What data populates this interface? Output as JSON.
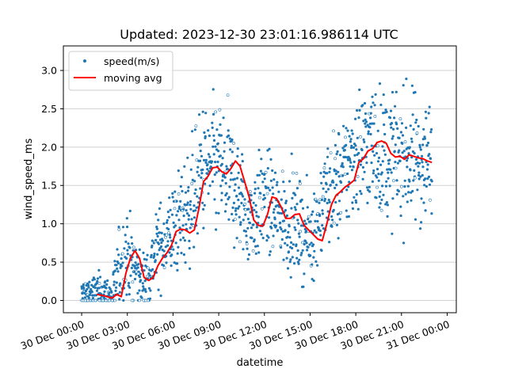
{
  "chart_data": {
    "type": "scatter",
    "title": "Updated: 2023-12-30 23:01:16.986114 UTC",
    "xlabel": "datetime",
    "ylabel": "wind_speed_ms",
    "x_unit": "hours since 30 Dec 00:00",
    "xlim_hours": [
      -1.2,
      24.6
    ],
    "ylim": [
      -0.16,
      3.32
    ],
    "x_ticks": [
      {
        "hour": 0,
        "label": "30 Dec 00:00"
      },
      {
        "hour": 3,
        "label": "30 Dec 03:00"
      },
      {
        "hour": 6,
        "label": "30 Dec 06:00"
      },
      {
        "hour": 9,
        "label": "30 Dec 09:00"
      },
      {
        "hour": 12,
        "label": "30 Dec 12:00"
      },
      {
        "hour": 15,
        "label": "30 Dec 15:00"
      },
      {
        "hour": 18,
        "label": "30 Dec 18:00"
      },
      {
        "hour": 21,
        "label": "30 Dec 21:00"
      },
      {
        "hour": 24,
        "label": "31 Dec 00:00"
      }
    ],
    "y_ticks": [
      0.0,
      0.5,
      1.0,
      1.5,
      2.0,
      2.5,
      3.0
    ],
    "y_tick_labels": [
      "0.0",
      "0.5",
      "1.0",
      "1.5",
      "2.0",
      "2.5",
      "3.0"
    ],
    "grid": "horizontal",
    "legend_position": "top-left",
    "colors": {
      "scatter": "#1f77b4",
      "moving_avg": "#ff0000"
    },
    "series": [
      {
        "name": "speed(m/s)",
        "kind": "scatter",
        "approx_points": 1300,
        "x_range_hours": [
          0,
          23
        ],
        "envelope_hours": [
          0,
          1,
          2,
          2.5,
          3,
          3.5,
          4,
          4.5,
          5,
          6,
          7,
          8,
          9,
          10,
          11,
          12,
          13,
          14,
          15,
          16,
          17,
          18,
          19,
          20,
          21,
          22,
          23
        ],
        "center": [
          0.08,
          0.12,
          0.05,
          0.45,
          0.62,
          0.4,
          0.25,
          0.4,
          0.7,
          0.9,
          1.2,
          1.7,
          1.75,
          1.5,
          1.05,
          1.3,
          1.1,
          1.0,
          0.8,
          1.35,
          1.55,
          1.95,
          2.05,
          1.85,
          1.9,
          1.85,
          1.8
        ],
        "spread": [
          0.18,
          0.22,
          0.25,
          0.45,
          0.5,
          0.4,
          0.3,
          0.4,
          0.45,
          0.55,
          0.65,
          0.75,
          0.75,
          0.7,
          0.55,
          0.6,
          0.55,
          0.55,
          0.5,
          0.6,
          0.65,
          0.75,
          0.75,
          0.75,
          0.75,
          0.75,
          0.7
        ]
      },
      {
        "name": "moving avg",
        "kind": "line",
        "x": [
          1.0,
          1.5,
          2.0,
          2.3,
          2.6,
          2.9,
          3.2,
          3.5,
          3.8,
          4.1,
          4.4,
          4.7,
          5.0,
          5.3,
          5.6,
          5.9,
          6.2,
          6.5,
          6.8,
          7.1,
          7.4,
          7.7,
          8.0,
          8.3,
          8.6,
          8.9,
          9.2,
          9.5,
          9.8,
          10.1,
          10.4,
          10.7,
          11.0,
          11.3,
          11.6,
          11.9,
          12.2,
          12.5,
          12.8,
          13.1,
          13.4,
          13.7,
          14.0,
          14.3,
          14.6,
          14.9,
          15.2,
          15.5,
          15.8,
          16.1,
          16.4,
          16.7,
          17.0,
          17.3,
          17.6,
          17.9,
          18.2,
          18.5,
          18.8,
          19.1,
          19.4,
          19.7,
          20.0,
          20.3,
          20.6,
          20.9,
          21.2,
          21.5,
          21.8,
          22.1,
          22.4,
          22.7,
          23.0
        ],
        "y": [
          0.08,
          0.06,
          0.03,
          0.08,
          0.05,
          0.35,
          0.55,
          0.65,
          0.55,
          0.3,
          0.26,
          0.3,
          0.45,
          0.55,
          0.62,
          0.72,
          0.9,
          0.93,
          0.92,
          0.88,
          0.92,
          1.2,
          1.55,
          1.62,
          1.73,
          1.74,
          1.68,
          1.65,
          1.72,
          1.82,
          1.75,
          1.55,
          1.35,
          1.05,
          0.98,
          0.97,
          1.12,
          1.35,
          1.33,
          1.22,
          1.07,
          1.07,
          1.12,
          1.13,
          0.98,
          0.92,
          0.86,
          0.8,
          0.78,
          1.0,
          1.25,
          1.37,
          1.42,
          1.48,
          1.52,
          1.57,
          1.8,
          1.85,
          1.95,
          1.98,
          2.06,
          2.08,
          2.05,
          1.92,
          1.87,
          1.88,
          1.84,
          1.9,
          1.88,
          1.86,
          1.85,
          1.82,
          1.8
        ]
      }
    ]
  }
}
